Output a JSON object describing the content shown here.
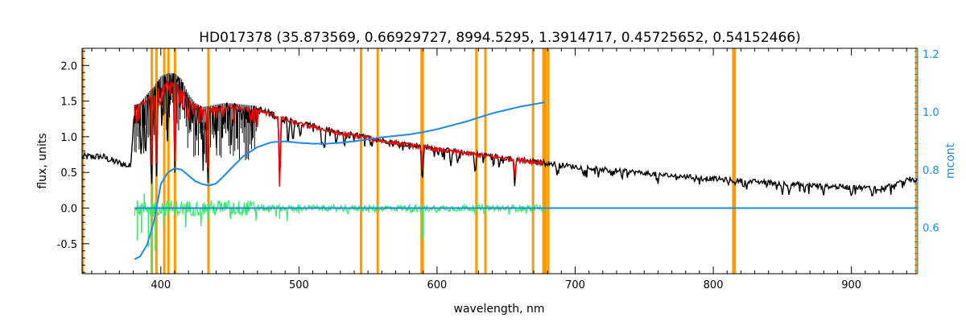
{
  "chart_data": {
    "type": "line",
    "title": "HD017378    (35.873569, 0.66929727, 8994.5295, 1.3914717, 0.45725652, 0.54152466)",
    "xlabel": "wavelength, nm",
    "ylabel": "flux, units",
    "y2label": "mcont",
    "xlim": [
      343,
      948
    ],
    "ylim": [
      -0.92,
      2.24
    ],
    "y2lim": [
      0.44,
      1.22
    ],
    "xticks": [
      "400",
      "500",
      "600",
      "700",
      "800",
      "900"
    ],
    "xtick_values": [
      400,
      500,
      600,
      700,
      800,
      900
    ],
    "yticks": [
      "-0.5",
      "0.0",
      "0.5",
      "1.0",
      "1.5",
      "2.0"
    ],
    "ytick_values": [
      -0.5,
      0.0,
      0.5,
      1.0,
      1.5,
      2.0
    ],
    "y2ticks": [
      "0.6",
      "0.8",
      "1.0",
      "1.2"
    ],
    "y2tick_values": [
      0.6,
      0.8,
      1.0,
      1.2
    ],
    "colors": {
      "observed": "#000000",
      "model": "#ee0000",
      "residual": "#33ee66",
      "mcont": "#1e88e5",
      "masks": "#ff9900",
      "axis": "#000000",
      "axis2": "#1e88e5"
    },
    "mask_lines": [
      343.5,
      393.5,
      396.8,
      402.5,
      405.5,
      410.2,
      434.5,
      545,
      557,
      588.8,
      589.6,
      628.5,
      635,
      669.5,
      677,
      678.5,
      680.5,
      814.5,
      815.5,
      947
    ],
    "observed": {
      "x": [
        343,
        350,
        358,
        365,
        372,
        378,
        381,
        385,
        390,
        395,
        400,
        405,
        410,
        415,
        420,
        425,
        430,
        435,
        440,
        445,
        450,
        460,
        470,
        480,
        490,
        500,
        510,
        520,
        530,
        540,
        550,
        560,
        570,
        580,
        590,
        600,
        620,
        640,
        660,
        680,
        700,
        720,
        740,
        760,
        780,
        800,
        820,
        840,
        860,
        880,
        900,
        920,
        935,
        940,
        948
      ],
      "y": [
        0.72,
        0.72,
        0.72,
        0.66,
        0.62,
        0.58,
        1.4,
        1.42,
        1.55,
        1.65,
        1.8,
        1.84,
        1.84,
        1.76,
        1.55,
        1.42,
        1.37,
        1.38,
        1.4,
        1.42,
        1.42,
        1.4,
        1.38,
        1.32,
        1.25,
        1.2,
        1.16,
        1.11,
        1.05,
        1.03,
        0.99,
        0.95,
        0.92,
        0.89,
        0.86,
        0.83,
        0.78,
        0.73,
        0.68,
        0.63,
        0.58,
        0.54,
        0.51,
        0.47,
        0.44,
        0.41,
        0.38,
        0.36,
        0.33,
        0.31,
        0.29,
        0.28,
        0.35,
        0.42,
        0.38
      ]
    },
    "observed_absorption": [
      {
        "x": 386,
        "depth": 0.75
      },
      {
        "x": 389,
        "depth": 0.95
      },
      {
        "x": 393.4,
        "depth": 1.25
      },
      {
        "x": 396.9,
        "depth": 1.35
      },
      {
        "x": 401,
        "depth": 0.5
      },
      {
        "x": 404.6,
        "depth": 0.6
      },
      {
        "x": 410.2,
        "depth": 1.35
      },
      {
        "x": 417,
        "depth": 0.35
      },
      {
        "x": 422.7,
        "depth": 0.35
      },
      {
        "x": 430.8,
        "depth": 0.6
      },
      {
        "x": 434.0,
        "depth": 1.05
      },
      {
        "x": 438.4,
        "depth": 0.35
      },
      {
        "x": 440.5,
        "depth": 0.3
      },
      {
        "x": 446,
        "depth": 0.3
      },
      {
        "x": 452,
        "depth": 0.25
      },
      {
        "x": 466,
        "depth": 0.25
      },
      {
        "x": 486.1,
        "depth": 1.0
      },
      {
        "x": 492,
        "depth": 0.3
      },
      {
        "x": 495.7,
        "depth": 0.25
      },
      {
        "x": 501,
        "depth": 0.25
      },
      {
        "x": 516.7,
        "depth": 0.3
      },
      {
        "x": 518.4,
        "depth": 0.35
      },
      {
        "x": 527,
        "depth": 0.2
      },
      {
        "x": 532.8,
        "depth": 0.2
      },
      {
        "x": 589.3,
        "depth": 0.55
      },
      {
        "x": 610,
        "depth": 0.2
      },
      {
        "x": 615,
        "depth": 0.2
      },
      {
        "x": 627.5,
        "depth": 0.25
      },
      {
        "x": 645,
        "depth": 0.15
      },
      {
        "x": 656.3,
        "depth": 0.4
      },
      {
        "x": 687,
        "depth": 0.15
      },
      {
        "x": 717,
        "depth": 0.1
      },
      {
        "x": 760,
        "depth": 0.12
      },
      {
        "x": 822,
        "depth": 0.1
      },
      {
        "x": 850,
        "depth": 0.14
      },
      {
        "x": 855,
        "depth": 0.14
      },
      {
        "x": 866,
        "depth": 0.14
      },
      {
        "x": 880,
        "depth": 0.12
      },
      {
        "x": 900,
        "depth": 0.12
      },
      {
        "x": 915,
        "depth": 0.12
      }
    ],
    "model": {
      "x": [
        381,
        385,
        390,
        395,
        400,
        405,
        410,
        415,
        420,
        425,
        430,
        435,
        440,
        445,
        450,
        460,
        470,
        480,
        490,
        500,
        510,
        520,
        530,
        540,
        550,
        560,
        570,
        580,
        590,
        600,
        620,
        640,
        660,
        678
      ],
      "y": [
        1.4,
        1.45,
        1.52,
        1.6,
        1.7,
        1.75,
        1.74,
        1.66,
        1.5,
        1.42,
        1.38,
        1.38,
        1.39,
        1.4,
        1.41,
        1.4,
        1.37,
        1.31,
        1.24,
        1.18,
        1.14,
        1.09,
        1.04,
        1.02,
        0.98,
        0.94,
        0.91,
        0.88,
        0.85,
        0.82,
        0.77,
        0.72,
        0.67,
        0.63
      ]
    },
    "model_absorption": [
      {
        "x": 393.4,
        "depth": 1.2
      },
      {
        "x": 396.9,
        "depth": 1.3
      },
      {
        "x": 410.2,
        "depth": 1.35
      },
      {
        "x": 434.0,
        "depth": 1.0
      },
      {
        "x": 486.1,
        "depth": 1.05
      },
      {
        "x": 589.3,
        "depth": 0.3
      },
      {
        "x": 656.3,
        "depth": 0.25
      }
    ],
    "residual": {
      "x_start": 381,
      "x_end": 678,
      "baseline": 0.0,
      "amplitude": 0.08,
      "spikes": [
        {
          "x": 383,
          "y": -0.45
        },
        {
          "x": 386,
          "y": -0.35
        },
        {
          "x": 391,
          "y": -0.55
        },
        {
          "x": 393,
          "y": -0.9
        },
        {
          "x": 396,
          "y": -0.6
        },
        {
          "x": 402,
          "y": -0.25
        },
        {
          "x": 410,
          "y": -0.1
        },
        {
          "x": 434,
          "y": -0.15
        },
        {
          "x": 486,
          "y": -0.15
        },
        {
          "x": 589,
          "y": -0.45
        },
        {
          "x": 590,
          "y": -0.4
        },
        {
          "x": 388,
          "y": 0.2
        },
        {
          "x": 394,
          "y": 0.35
        }
      ]
    },
    "mcont": {
      "x": [
        381,
        385,
        390,
        395,
        400,
        405,
        410,
        415,
        420,
        425,
        430,
        435,
        440,
        445,
        450,
        460,
        470,
        480,
        490,
        500,
        510,
        520,
        530,
        540,
        550,
        560,
        570,
        580,
        590,
        600,
        620,
        640,
        660,
        678
      ],
      "y": [
        0.49,
        0.5,
        0.54,
        0.62,
        0.75,
        0.79,
        0.805,
        0.8,
        0.78,
        0.76,
        0.75,
        0.745,
        0.752,
        0.775,
        0.8,
        0.848,
        0.878,
        0.895,
        0.898,
        0.893,
        0.89,
        0.89,
        0.893,
        0.898,
        0.905,
        0.912,
        0.917,
        0.922,
        0.93,
        0.94,
        0.965,
        0.995,
        1.018,
        1.033
      ]
    },
    "mcont_flat": {
      "x_start": 381,
      "x_end": 948,
      "value": 0.0
    }
  }
}
